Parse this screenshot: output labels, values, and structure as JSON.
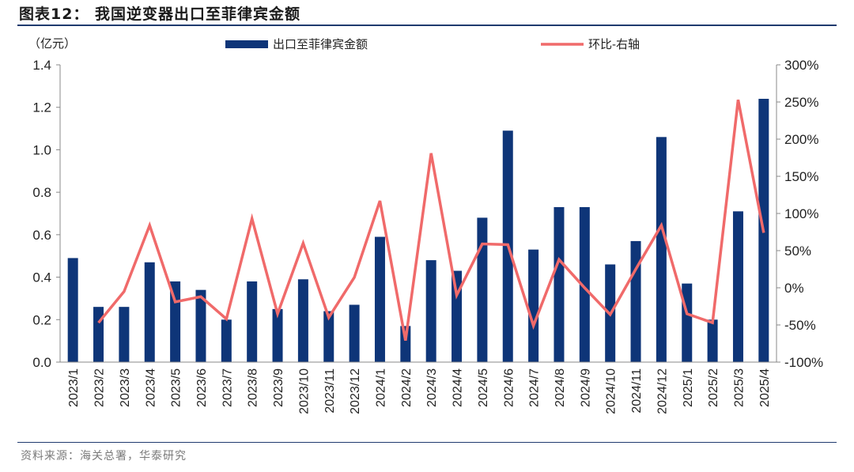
{
  "title": "图表12：  我国逆变器出口至菲律宾金额",
  "source": "资料来源：海关总署，华泰研究",
  "chart_data": {
    "type": "bar",
    "unit_label": "（亿元）",
    "categories": [
      "2023/1",
      "2023/2",
      "2023/3",
      "2023/4",
      "2023/5",
      "2023/6",
      "2023/7",
      "2023/8",
      "2023/9",
      "2023/10",
      "2023/11",
      "2023/12",
      "2024/1",
      "2024/2",
      "2024/3",
      "2024/4",
      "2024/5",
      "2024/6",
      "2024/7",
      "2024/8",
      "2024/9",
      "2024/10",
      "2024/11",
      "2024/12",
      "2025/1",
      "2025/2",
      "2025/3",
      "2025/4"
    ],
    "series": [
      {
        "name": "出口至菲律宾金额",
        "type": "bar",
        "axis": "left",
        "color": "#0e3578",
        "values": [
          0.49,
          0.26,
          0.26,
          0.47,
          0.38,
          0.34,
          0.2,
          0.38,
          0.25,
          0.39,
          0.24,
          0.27,
          0.59,
          0.17,
          0.48,
          0.43,
          0.68,
          1.09,
          0.53,
          0.73,
          0.73,
          0.46,
          0.57,
          1.06,
          0.37,
          0.2,
          0.71,
          1.24
        ]
      },
      {
        "name": "环比-右轴",
        "type": "line",
        "axis": "right",
        "color": "#f06a6a",
        "values": [
          null,
          -47,
          -5,
          84,
          -19,
          -12,
          -42,
          93,
          -35,
          60,
          -40,
          14,
          117,
          -71,
          181,
          -10,
          59,
          58,
          -51,
          38,
          0,
          -36,
          25,
          84,
          -35,
          -47,
          253,
          74
        ]
      }
    ],
    "left_axis": {
      "ylim": [
        0,
        1.4
      ],
      "ticks": [
        "0.0",
        "0.2",
        "0.4",
        "0.6",
        "0.8",
        "1.0",
        "1.2",
        "1.4"
      ]
    },
    "right_axis": {
      "ylim": [
        -100,
        300
      ],
      "ticks": [
        "-100%",
        "-50%",
        "0%",
        "50%",
        "100%",
        "150%",
        "200%",
        "250%",
        "300%"
      ]
    },
    "legend_placement": "top",
    "grid": false
  }
}
